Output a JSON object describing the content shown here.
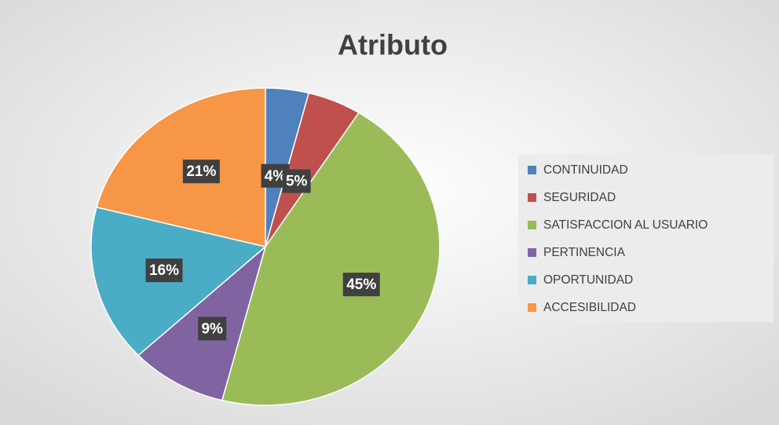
{
  "chart_data": {
    "type": "pie",
    "title": "Atributo",
    "categories": [
      "CONTINUIDAD",
      "SEGURIDAD",
      "SATISFACCION AL USUARIO",
      "PERTINENCIA",
      "OPORTUNIDAD",
      "ACCESIBILIDAD"
    ],
    "values": [
      4,
      5,
      45,
      9,
      16,
      21
    ],
    "value_labels": [
      "4%",
      "5%",
      "45%",
      "9%",
      "16%",
      "21%"
    ],
    "colors": [
      "#4f81bd",
      "#c0504d",
      "#9bbb59",
      "#8064a2",
      "#4bacc6",
      "#f79646"
    ],
    "legend": "right"
  }
}
